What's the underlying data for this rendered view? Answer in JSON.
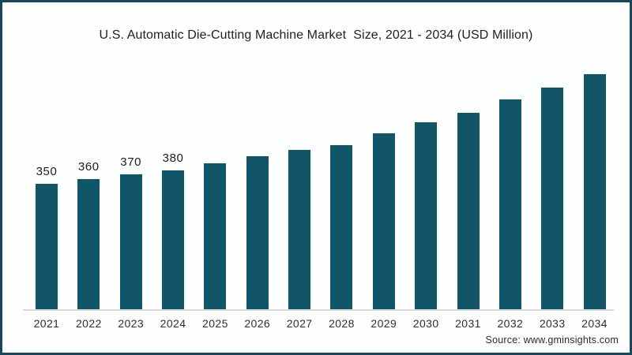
{
  "title": "U.S. Automatic Die-Cutting Machine Market  Size, 2021 - 2034 (USD Million)",
  "source_credit": "Source: www.gminsights.com",
  "colors": {
    "frame_border": "#19455F",
    "bar": "#135568",
    "axis_line": "#D9D9D9",
    "background": "#FDFEFE",
    "title_text": "#1F1F1F",
    "tick_text": "#2E2E2E"
  },
  "chart_data": {
    "type": "bar",
    "title": "U.S. Automatic Die-Cutting Machine Market  Size, 2021 - 2034 (USD Million)",
    "unit": "USD Million",
    "categories": [
      "2021",
      "2022",
      "2023",
      "2024",
      "2025",
      "2026",
      "2027",
      "2028",
      "2029",
      "2030",
      "2031",
      "2032",
      "2033",
      "2034"
    ],
    "values": [
      350,
      360,
      370,
      380,
      395,
      410,
      425,
      435,
      460,
      485,
      505,
      535,
      560,
      590
    ],
    "data_labels": [
      "350",
      "360",
      "370",
      "380",
      "",
      "",
      "",
      "",
      "",
      "",
      "",
      "",
      "",
      ""
    ],
    "xlabel": "",
    "ylabel": "USD Million",
    "legend": "none",
    "gridlines": false,
    "y_axis_shown": false
  }
}
